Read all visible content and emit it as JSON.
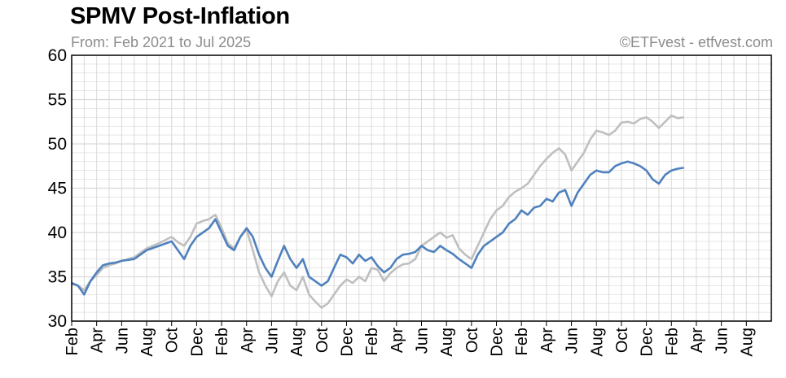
{
  "header": {
    "title": "SPMV Post-Inflation",
    "subtitle": "From: Feb 2021 to Jul 2025",
    "credit": "©ETFvest - etfvest.com"
  },
  "chart_data": {
    "type": "line",
    "title": "SPMV Post-Inflation",
    "subtitle": "From: Feb 2021 to Jul 2025",
    "ylim": [
      30,
      60
    ],
    "yticks": [
      30,
      35,
      40,
      45,
      50,
      55,
      60
    ],
    "grid": true,
    "x_tick_labels": [
      "Feb",
      "Apr",
      "Jun",
      "Aug",
      "Oct",
      "Dec",
      "Feb",
      "Apr",
      "Jun",
      "Aug",
      "Oct",
      "Dec",
      "Feb",
      "Apr",
      "Jun",
      "Aug",
      "Oct",
      "Dec",
      "Feb",
      "Apr",
      "Jun",
      "Aug",
      "Oct",
      "Dec",
      "Feb",
      "Apr",
      "Jun",
      "Aug"
    ],
    "x_tick_month_index": [
      0,
      2,
      4,
      6,
      8,
      10,
      12,
      14,
      16,
      18,
      20,
      22,
      24,
      26,
      28,
      30,
      32,
      34,
      36,
      38,
      40,
      42,
      44,
      46,
      48,
      50,
      52,
      54
    ],
    "month_index_max": 56,
    "colors": {
      "inflation_adjusted": "#4f81bd",
      "nominal": "#bfbfbf",
      "grid": "#d9d9d9",
      "axis": "#000000"
    },
    "series": [
      {
        "color": "#bfbfbf",
        "x": [
          0,
          0.5,
          1,
          1.5,
          2,
          2.5,
          3,
          3.5,
          4,
          5,
          6,
          7,
          8,
          8.5,
          9,
          9.5,
          10,
          10.5,
          11,
          11.5,
          12,
          12.5,
          13,
          13.5,
          14,
          14.5,
          15,
          15.5,
          16,
          16.5,
          17,
          17.5,
          18,
          18.5,
          19,
          19.5,
          20,
          20.5,
          21,
          21.5,
          22,
          22.5,
          23,
          23.5,
          24,
          24.5,
          25,
          25.5,
          26,
          26.5,
          27,
          27.5,
          28,
          28.5,
          29,
          29.5,
          30,
          30.5,
          31,
          31.5,
          32,
          32.5,
          33,
          33.5,
          34,
          34.5,
          35,
          35.5,
          36,
          36.5,
          37,
          37.5,
          38,
          38.5,
          39,
          39.5,
          40,
          40.5,
          41,
          41.5,
          42,
          42.5,
          43,
          43.5,
          44,
          44.5,
          45,
          45.5,
          46,
          46.5,
          47,
          47.5,
          48,
          48.5,
          49
        ],
        "values": [
          34.2,
          34.0,
          33.5,
          34.5,
          35.2,
          36.0,
          36.3,
          36.5,
          36.8,
          37.2,
          38.2,
          38.8,
          39.5,
          38.9,
          38.5,
          39.5,
          41.0,
          41.3,
          41.5,
          42.0,
          40.5,
          38.8,
          38.2,
          39.5,
          40.3,
          38.0,
          35.5,
          34.0,
          32.8,
          34.5,
          35.5,
          34.0,
          33.5,
          35.0,
          33.0,
          32.2,
          31.5,
          32.0,
          33.0,
          34.0,
          34.7,
          34.3,
          35.0,
          34.5,
          36.0,
          35.8,
          34.5,
          35.4,
          36.0,
          36.4,
          36.5,
          37.0,
          38.5,
          39.0,
          39.5,
          40.0,
          39.4,
          39.7,
          38.2,
          37.5,
          37.0,
          38.5,
          40.0,
          41.5,
          42.5,
          43.0,
          44.0,
          44.6,
          45.0,
          45.5,
          46.5,
          47.5,
          48.3,
          49.0,
          49.5,
          48.8,
          47.0,
          48.0,
          49.0,
          50.5,
          51.5,
          51.3,
          51.0,
          51.5,
          52.4,
          52.5,
          52.3,
          52.8,
          53.0,
          52.5,
          51.8,
          52.5,
          53.2,
          52.9,
          53.0
        ]
      },
      {
        "color": "#4f81bd",
        "x": [
          0,
          0.5,
          1,
          1.5,
          2,
          2.5,
          3,
          3.5,
          4,
          5,
          6,
          7,
          8,
          8.5,
          9,
          9.5,
          10,
          10.5,
          11,
          11.5,
          12,
          12.5,
          13,
          13.5,
          14,
          14.5,
          15,
          15.5,
          16,
          16.5,
          17,
          17.5,
          18,
          18.5,
          19,
          19.5,
          20,
          20.5,
          21,
          21.5,
          22,
          22.5,
          23,
          23.5,
          24,
          24.5,
          25,
          25.5,
          26,
          26.5,
          27,
          27.5,
          28,
          28.5,
          29,
          29.5,
          30,
          30.5,
          31,
          31.5,
          32,
          32.5,
          33,
          33.5,
          34,
          34.5,
          35,
          35.5,
          36,
          36.5,
          37,
          37.5,
          38,
          38.5,
          39,
          39.5,
          40,
          40.5,
          41,
          41.5,
          42,
          42.5,
          43,
          43.5,
          44,
          44.5,
          45,
          45.5,
          46,
          46.5,
          47,
          47.5,
          48,
          48.5,
          49
        ],
        "values": [
          34.3,
          34.0,
          33.0,
          34.5,
          35.5,
          36.3,
          36.5,
          36.6,
          36.8,
          37.0,
          38.0,
          38.5,
          39.0,
          38.0,
          37.0,
          38.5,
          39.5,
          40.0,
          40.5,
          41.5,
          40.0,
          38.5,
          38.0,
          39.5,
          40.5,
          39.5,
          37.5,
          36.0,
          35.0,
          36.8,
          38.5,
          37.0,
          36.0,
          37.0,
          35.0,
          34.5,
          34.0,
          34.5,
          36.0,
          37.5,
          37.2,
          36.5,
          37.5,
          36.8,
          37.2,
          36.2,
          35.5,
          36.0,
          37.0,
          37.5,
          37.6,
          37.8,
          38.5,
          38.0,
          37.8,
          38.5,
          38.0,
          37.6,
          37.0,
          36.5,
          36.0,
          37.5,
          38.5,
          39.0,
          39.5,
          40.0,
          41.0,
          41.5,
          42.5,
          42.0,
          42.8,
          43.0,
          43.8,
          43.5,
          44.5,
          44.8,
          43.0,
          44.5,
          45.5,
          46.5,
          47.0,
          46.8,
          46.8,
          47.5,
          47.8,
          48.0,
          47.8,
          47.5,
          47.0,
          46.0,
          45.5,
          46.5,
          47.0,
          47.2,
          47.3
        ]
      }
    ]
  }
}
